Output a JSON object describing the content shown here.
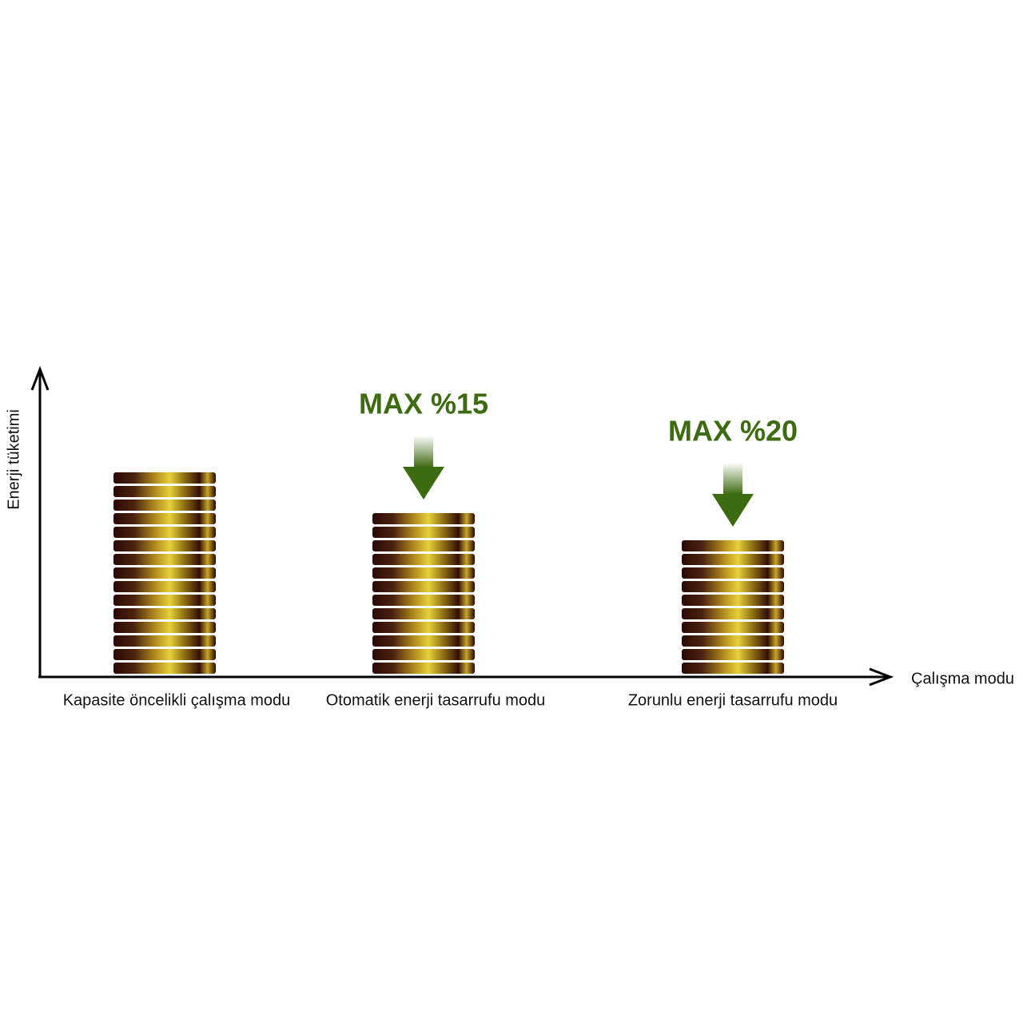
{
  "chart_data": {
    "type": "coin-stack",
    "x_label": "Çalışma modu",
    "y_label": "Enerji tüketimi",
    "categories": [
      "Kapasite öncelikli çalışma modu",
      "Otomatik enerji tasarrufu modu",
      "Zorunlu enerji tasarrufu modu"
    ],
    "values": [
      15,
      12,
      10
    ],
    "annotations": [
      null,
      "MAX %15",
      "MAX %20"
    ],
    "annotation_color": "#3d6b0f"
  }
}
